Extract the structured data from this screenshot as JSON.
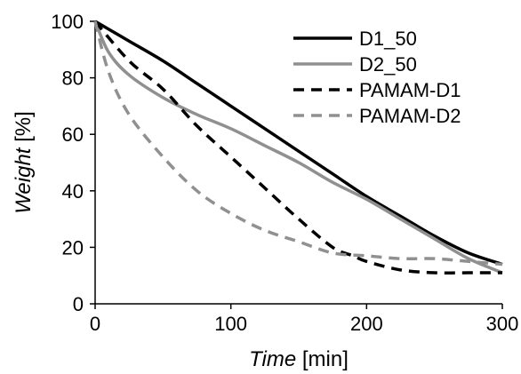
{
  "chart_data": {
    "type": "line",
    "xlabel": {
      "italic": "Time",
      "unit": " [min]"
    },
    "ylabel": {
      "italic": "Weight",
      "unit": " [%]"
    },
    "xlim": [
      0,
      300
    ],
    "ylim": [
      0,
      100
    ],
    "xticks": [
      0,
      100,
      200,
      300
    ],
    "yticks": [
      0,
      20,
      40,
      60,
      80,
      100
    ],
    "grid": false,
    "legend_position": "top-right",
    "series": [
      {
        "name": "D1_50",
        "color": "#000000",
        "dash": "solid",
        "x": [
          0,
          25,
          50,
          75,
          100,
          125,
          150,
          175,
          200,
          225,
          250,
          275,
          300
        ],
        "y": [
          100,
          93,
          86,
          78,
          70,
          62,
          54,
          46,
          38,
          31,
          24,
          18,
          14
        ]
      },
      {
        "name": "D2_50",
        "color": "#909090",
        "dash": "solid",
        "x": [
          0,
          10,
          25,
          50,
          75,
          100,
          125,
          150,
          175,
          200,
          225,
          250,
          275,
          300
        ],
        "y": [
          100,
          89,
          81,
          73,
          67,
          62,
          56,
          50,
          43,
          37,
          30,
          23,
          16,
          11
        ]
      },
      {
        "name": "PAMAM-D1",
        "color": "#000000",
        "dash": "dashed",
        "x": [
          0,
          25,
          50,
          75,
          100,
          125,
          150,
          175,
          190,
          200,
          225,
          250,
          275,
          300
        ],
        "y": [
          100,
          86,
          76,
          63,
          52,
          41,
          30,
          20,
          17,
          15,
          12,
          11,
          11,
          11
        ]
      },
      {
        "name": "PAMAM-D2",
        "color": "#909090",
        "dash": "dashed",
        "x": [
          0,
          10,
          25,
          50,
          75,
          100,
          125,
          150,
          175,
          200,
          225,
          250,
          275,
          300
        ],
        "y": [
          100,
          82,
          67,
          52,
          40,
          32,
          26,
          22,
          18,
          17,
          16,
          16,
          15,
          14
        ]
      }
    ]
  }
}
